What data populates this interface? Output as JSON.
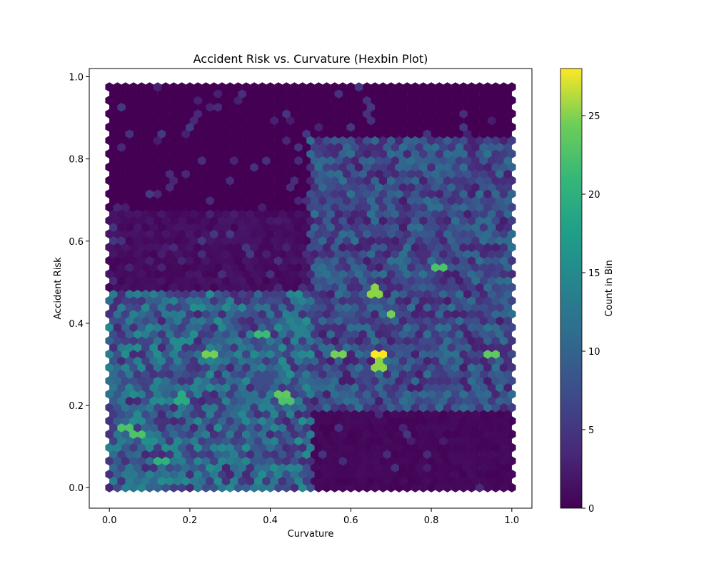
{
  "chart_data": {
    "type": "heatmap",
    "subtype": "hexbin",
    "title": "Accident Risk vs. Curvature (Hexbin Plot)",
    "xlabel": "Curvature",
    "ylabel": "Accident Risk",
    "xlim": [
      -0.05,
      1.05
    ],
    "ylim": [
      -0.05,
      1.02
    ],
    "x_ticks": [
      "0.0",
      "0.2",
      "0.4",
      "0.6",
      "0.8",
      "1.0"
    ],
    "y_ticks": [
      "0.0",
      "0.2",
      "0.4",
      "0.6",
      "0.8",
      "1.0"
    ],
    "colorbar": {
      "label": "Count in Bin",
      "range": [
        0,
        28
      ],
      "ticks": [
        "0",
        "5",
        "10",
        "15",
        "20",
        "25"
      ],
      "colormap": "viridis"
    },
    "hexbin": {
      "gridsize": 50,
      "x_range": [
        0.0,
        1.0
      ],
      "y_range": [
        0.0,
        0.975
      ]
    },
    "density_regions": [
      {
        "x": [
          0.0,
          0.5
        ],
        "y": [
          0.0,
          0.48
        ],
        "mean_count": 8
      },
      {
        "x": [
          0.5,
          1.0
        ],
        "y": [
          0.18,
          0.85
        ],
        "mean_count": 6
      },
      {
        "x": [
          0.0,
          0.5
        ],
        "y": [
          0.48,
          0.68
        ],
        "mean_count": 1
      },
      {
        "x": [
          0.5,
          1.0
        ],
        "y": [
          0.0,
          0.18
        ],
        "mean_count": 0.5
      }
    ],
    "hotspots": [
      {
        "x": 0.67,
        "y": 0.33,
        "count": 28
      },
      {
        "x": 0.67,
        "y": 0.3,
        "count": 23
      },
      {
        "x": 0.66,
        "y": 0.48,
        "count": 23
      },
      {
        "x": 0.7,
        "y": 0.42,
        "count": 22
      },
      {
        "x": 0.25,
        "y": 0.33,
        "count": 22
      },
      {
        "x": 0.57,
        "y": 0.33,
        "count": 22
      },
      {
        "x": 0.95,
        "y": 0.33,
        "count": 21
      },
      {
        "x": 0.44,
        "y": 0.21,
        "count": 20
      },
      {
        "x": 0.43,
        "y": 0.23,
        "count": 21
      },
      {
        "x": 0.07,
        "y": 0.13,
        "count": 20
      },
      {
        "x": 0.04,
        "y": 0.14,
        "count": 20
      },
      {
        "x": 0.82,
        "y": 0.53,
        "count": 20
      },
      {
        "x": 0.38,
        "y": 0.38,
        "count": 19
      },
      {
        "x": 0.13,
        "y": 0.06,
        "count": 18
      },
      {
        "x": 0.18,
        "y": 0.22,
        "count": 17
      }
    ]
  }
}
